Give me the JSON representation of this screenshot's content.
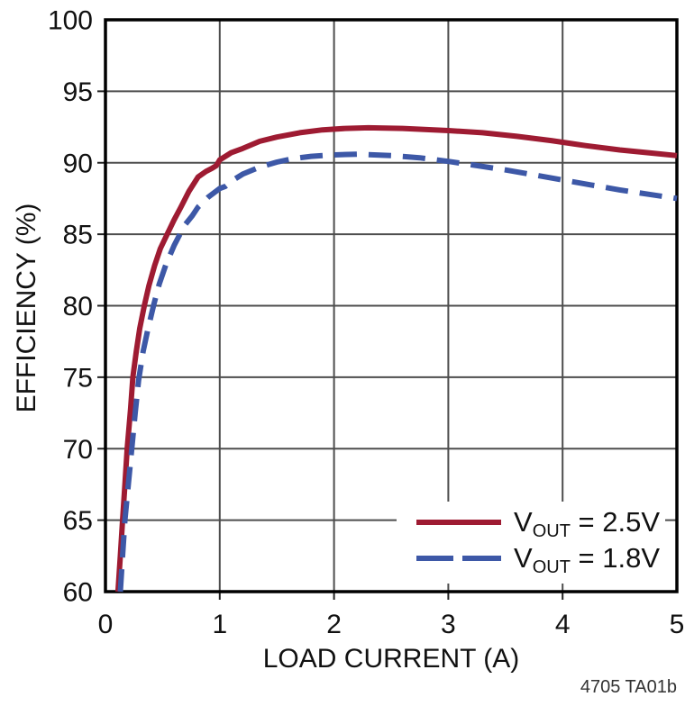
{
  "chart_data": {
    "type": "line",
    "title": "",
    "xlabel": "LOAD CURRENT (A)",
    "ylabel": "EFFICIENCY (%)",
    "xlim": [
      0,
      5
    ],
    "ylim": [
      60,
      100
    ],
    "xticks": [
      0,
      1,
      2,
      3,
      4,
      5
    ],
    "yticks": [
      60,
      65,
      70,
      75,
      80,
      85,
      90,
      95,
      100
    ],
    "grid": true,
    "legend_position": "inside-bottom-right",
    "caption": "4705 TA01b",
    "colors": {
      "frame": "#000000",
      "grid": "#4d4d4d",
      "tick": "#222222",
      "text": "#111111",
      "background": "#ffffff",
      "series1": "#9e1b32",
      "series2": "#3d58a7"
    },
    "series": [
      {
        "name": "VOUT = 2.5V",
        "label_prefix": "V",
        "label_sub": "OUT",
        "label_suffix": " = 2.5V",
        "color": "#9e1b32",
        "style": "solid",
        "points": [
          [
            0.11,
            60
          ],
          [
            0.13,
            62.5
          ],
          [
            0.15,
            65
          ],
          [
            0.17,
            67.5
          ],
          [
            0.19,
            70
          ],
          [
            0.22,
            72.8
          ],
          [
            0.24,
            75
          ],
          [
            0.27,
            76.8
          ],
          [
            0.3,
            78.4
          ],
          [
            0.34,
            80
          ],
          [
            0.38,
            81.4
          ],
          [
            0.43,
            82.8
          ],
          [
            0.48,
            84
          ],
          [
            0.54,
            85
          ],
          [
            0.6,
            86
          ],
          [
            0.66,
            86.9
          ],
          [
            0.73,
            88
          ],
          [
            0.81,
            89
          ],
          [
            0.88,
            89.4
          ],
          [
            0.93,
            89.6
          ],
          [
            0.97,
            89.8
          ],
          [
            1.0,
            90.2
          ],
          [
            1.1,
            90.7
          ],
          [
            1.2,
            91.0
          ],
          [
            1.35,
            91.5
          ],
          [
            1.5,
            91.8
          ],
          [
            1.7,
            92.1
          ],
          [
            1.9,
            92.3
          ],
          [
            2.1,
            92.4
          ],
          [
            2.3,
            92.45
          ],
          [
            2.6,
            92.4
          ],
          [
            3.0,
            92.25
          ],
          [
            3.3,
            92.1
          ],
          [
            3.6,
            91.85
          ],
          [
            3.9,
            91.55
          ],
          [
            4.2,
            91.2
          ],
          [
            4.5,
            90.9
          ],
          [
            4.75,
            90.7
          ],
          [
            5.0,
            90.5
          ]
        ]
      },
      {
        "name": "VOUT = 1.8V",
        "label_prefix": "V",
        "label_sub": "OUT",
        "label_suffix": " = 1.8V",
        "color": "#3d58a7",
        "style": "dashed",
        "points": [
          [
            0.13,
            60
          ],
          [
            0.15,
            62.5
          ],
          [
            0.17,
            65
          ],
          [
            0.2,
            67.5
          ],
          [
            0.23,
            70
          ],
          [
            0.26,
            72.5
          ],
          [
            0.29,
            74.8
          ],
          [
            0.33,
            76.8
          ],
          [
            0.37,
            78.3
          ],
          [
            0.42,
            80
          ],
          [
            0.47,
            81.5
          ],
          [
            0.53,
            82.9
          ],
          [
            0.6,
            84.2
          ],
          [
            0.69,
            85.6
          ],
          [
            0.76,
            86.3
          ],
          [
            0.81,
            86.9
          ],
          [
            0.9,
            87.6
          ],
          [
            1.0,
            88.2
          ],
          [
            1.05,
            88.35
          ],
          [
            1.12,
            88.8
          ],
          [
            1.2,
            89.2
          ],
          [
            1.35,
            89.7
          ],
          [
            1.5,
            90.05
          ],
          [
            1.65,
            90.3
          ],
          [
            1.8,
            90.45
          ],
          [
            2.0,
            90.55
          ],
          [
            2.2,
            90.6
          ],
          [
            2.5,
            90.5
          ],
          [
            2.75,
            90.35
          ],
          [
            3.0,
            90.1
          ],
          [
            3.25,
            89.8
          ],
          [
            3.5,
            89.5
          ],
          [
            3.75,
            89.15
          ],
          [
            4.0,
            88.8
          ],
          [
            4.25,
            88.45
          ],
          [
            4.5,
            88.1
          ],
          [
            4.75,
            87.8
          ],
          [
            5.0,
            87.5
          ]
        ]
      }
    ]
  }
}
